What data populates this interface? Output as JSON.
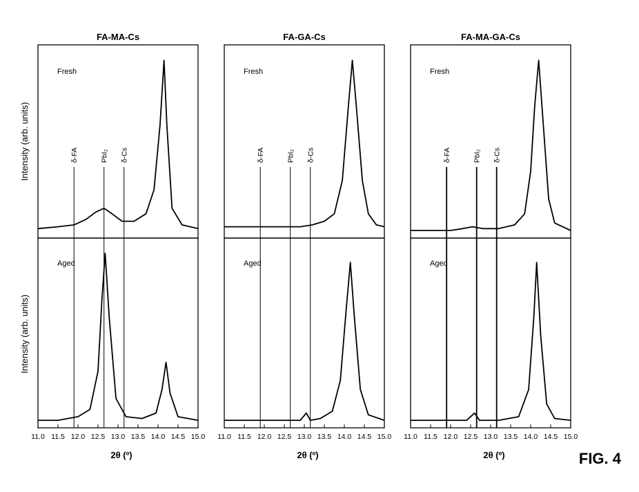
{
  "figure_label": "FIG. 4",
  "chart_data": {
    "type": "line",
    "xlabel": "2θ (º)",
    "ylabel": "Intensity (arb. units)",
    "xlim": [
      11.0,
      15.0
    ],
    "x_ticks": [
      "11.0",
      "11.5",
      "12.0",
      "12.5",
      "13.0",
      "13.5",
      "14.0",
      "14.5",
      "15.0"
    ],
    "rows": [
      {
        "label": "Fresh",
        "position": "top"
      },
      {
        "label": "Aged",
        "position": "bottom"
      }
    ],
    "reference_lines": [
      {
        "label": "δ-FA",
        "x": 11.9
      },
      {
        "label": "PbI₂",
        "x": 12.65
      },
      {
        "label": "δ-Cs",
        "x": 13.15
      }
    ],
    "panels": [
      {
        "title": "FA-MA-Cs",
        "fresh": {
          "x": [
            11.0,
            11.5,
            11.9,
            12.2,
            12.45,
            12.65,
            12.85,
            13.1,
            13.4,
            13.7,
            13.9,
            14.05,
            14.15,
            14.22,
            14.35,
            14.6,
            15.0
          ],
          "y": [
            0.04,
            0.05,
            0.06,
            0.09,
            0.13,
            0.15,
            0.12,
            0.08,
            0.08,
            0.12,
            0.25,
            0.6,
            0.95,
            0.6,
            0.15,
            0.06,
            0.04
          ]
        },
        "aged": {
          "x": [
            11.0,
            11.5,
            12.0,
            12.3,
            12.5,
            12.6,
            12.68,
            12.78,
            12.95,
            13.2,
            13.6,
            13.95,
            14.1,
            14.2,
            14.3,
            14.5,
            15.0
          ],
          "y": [
            0.03,
            0.03,
            0.05,
            0.09,
            0.3,
            0.7,
            0.95,
            0.6,
            0.15,
            0.05,
            0.04,
            0.07,
            0.2,
            0.35,
            0.18,
            0.05,
            0.03
          ]
        }
      },
      {
        "title": "FA-GA-Cs",
        "fresh": {
          "x": [
            11.0,
            11.5,
            12.0,
            12.5,
            12.9,
            13.2,
            13.5,
            13.75,
            13.95,
            14.1,
            14.2,
            14.3,
            14.45,
            14.6,
            14.8,
            15.0
          ],
          "y": [
            0.05,
            0.05,
            0.05,
            0.05,
            0.05,
            0.06,
            0.08,
            0.12,
            0.3,
            0.7,
            0.95,
            0.7,
            0.3,
            0.12,
            0.06,
            0.05
          ]
        },
        "aged": {
          "x": [
            11.0,
            11.5,
            12.0,
            12.5,
            12.9,
            13.05,
            13.15,
            13.4,
            13.7,
            13.9,
            14.05,
            14.15,
            14.25,
            14.4,
            14.6,
            15.0
          ],
          "y": [
            0.03,
            0.03,
            0.03,
            0.03,
            0.03,
            0.07,
            0.03,
            0.04,
            0.08,
            0.25,
            0.65,
            0.9,
            0.6,
            0.2,
            0.06,
            0.03
          ]
        }
      },
      {
        "title": "FA-MA-GA-Cs",
        "fresh": {
          "x": [
            11.0,
            11.5,
            12.0,
            12.3,
            12.55,
            12.8,
            13.2,
            13.6,
            13.85,
            14.0,
            14.1,
            14.2,
            14.3,
            14.45,
            14.6,
            15.0
          ],
          "y": [
            0.03,
            0.03,
            0.03,
            0.04,
            0.05,
            0.04,
            0.04,
            0.06,
            0.12,
            0.35,
            0.7,
            0.95,
            0.65,
            0.2,
            0.07,
            0.03
          ]
        },
        "aged": {
          "x": [
            11.0,
            11.5,
            12.0,
            12.4,
            12.6,
            12.72,
            12.85,
            13.2,
            13.7,
            13.95,
            14.08,
            14.15,
            14.25,
            14.4,
            14.6,
            15.0
          ],
          "y": [
            0.03,
            0.03,
            0.03,
            0.03,
            0.07,
            0.03,
            0.03,
            0.03,
            0.05,
            0.2,
            0.6,
            0.9,
            0.5,
            0.12,
            0.04,
            0.03
          ]
        }
      }
    ]
  }
}
